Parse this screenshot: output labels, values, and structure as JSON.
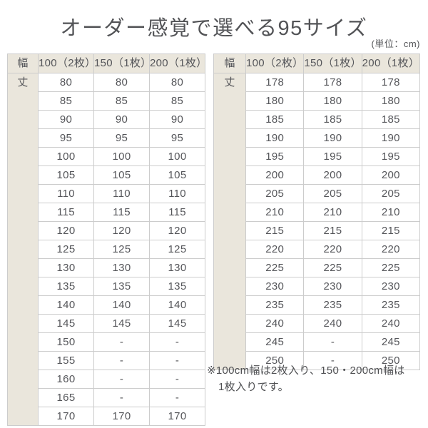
{
  "title": "オーダー感覚で選べる95サイズ",
  "unit_label": "(単位：cm)",
  "colors": {
    "header_beige": "#eae6dc",
    "border_gray": "#cccccc",
    "text_gray": "#55565a",
    "background": "#ffffff"
  },
  "tables": [
    {
      "name": "size-table-short",
      "headers": [
        "幅",
        "100（2枚）",
        "150（1枚）",
        "200（1枚）"
      ],
      "row_header": "丈",
      "rows": [
        [
          "80",
          "80",
          "80"
        ],
        [
          "85",
          "85",
          "85"
        ],
        [
          "90",
          "90",
          "90"
        ],
        [
          "95",
          "95",
          "95"
        ],
        [
          "100",
          "100",
          "100"
        ],
        [
          "105",
          "105",
          "105"
        ],
        [
          "110",
          "110",
          "110"
        ],
        [
          "115",
          "115",
          "115"
        ],
        [
          "120",
          "120",
          "120"
        ],
        [
          "125",
          "125",
          "125"
        ],
        [
          "130",
          "130",
          "130"
        ],
        [
          "135",
          "135",
          "135"
        ],
        [
          "140",
          "140",
          "140"
        ],
        [
          "145",
          "145",
          "145"
        ],
        [
          "150",
          "-",
          "-"
        ],
        [
          "155",
          "-",
          "-"
        ],
        [
          "160",
          "-",
          "-"
        ],
        [
          "165",
          "-",
          "-"
        ],
        [
          "170",
          "170",
          "170"
        ]
      ]
    },
    {
      "name": "size-table-long",
      "headers": [
        "幅",
        "100（2枚）",
        "150（1枚）",
        "200（1枚）"
      ],
      "row_header": "丈",
      "rows": [
        [
          "178",
          "178",
          "178"
        ],
        [
          "180",
          "180",
          "180"
        ],
        [
          "185",
          "185",
          "185"
        ],
        [
          "190",
          "190",
          "190"
        ],
        [
          "195",
          "195",
          "195"
        ],
        [
          "200",
          "200",
          "200"
        ],
        [
          "205",
          "205",
          "205"
        ],
        [
          "210",
          "210",
          "210"
        ],
        [
          "215",
          "215",
          "215"
        ],
        [
          "220",
          "220",
          "220"
        ],
        [
          "225",
          "225",
          "225"
        ],
        [
          "230",
          "230",
          "230"
        ],
        [
          "235",
          "235",
          "235"
        ],
        [
          "240",
          "240",
          "240"
        ],
        [
          "245",
          "-",
          "245"
        ],
        [
          "250",
          "-",
          "250"
        ]
      ]
    }
  ],
  "note": {
    "line1": "※100cm幅は2枚入り、150・200cm幅は",
    "line2": "1枚入りです。"
  }
}
